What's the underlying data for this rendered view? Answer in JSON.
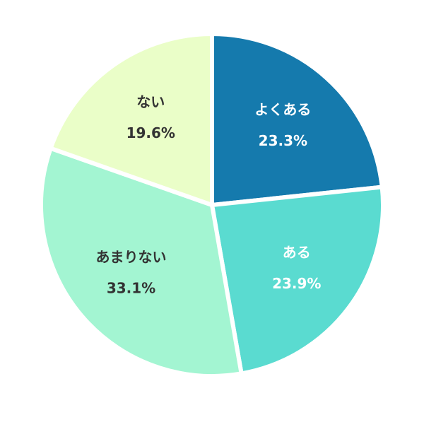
{
  "chart_data": {
    "type": "pie",
    "categories": [
      "よくある",
      "ある",
      "あまりない",
      "ない"
    ],
    "values": [
      23.3,
      23.9,
      33.1,
      19.6
    ],
    "value_labels": [
      "23.3%",
      "23.9%",
      "33.1%",
      "19.6%"
    ],
    "colors": [
      "#157aad",
      "#5adbd0",
      "#a3f5d2",
      "#eafec8"
    ]
  }
}
